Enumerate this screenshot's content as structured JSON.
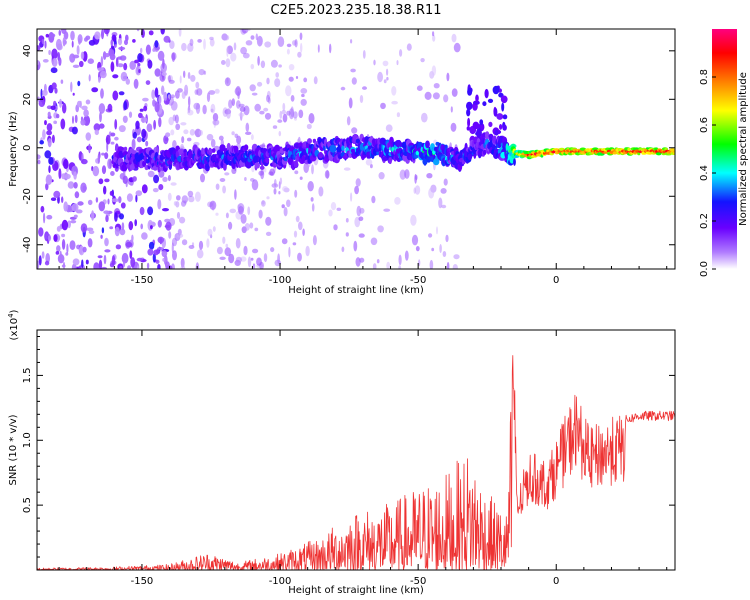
{
  "title": "C2E5.2023.235.18.38.R11",
  "chart_data": [
    {
      "type": "heatmap",
      "xlabel": "Height of straight line (km)",
      "ylabel": "Frequency (Hz)",
      "xlim": [
        -188,
        43
      ],
      "ylim": [
        -50,
        49
      ],
      "xticks": [
        -150,
        -100,
        -50,
        0
      ],
      "yticks": [
        -40,
        -20,
        0,
        20,
        40
      ],
      "colorbar": {
        "label": "Normalized spectral amplitude",
        "range": [
          0,
          1
        ],
        "ticks": [
          "0.0",
          "0.2",
          "0.4",
          "0.6",
          "0.8"
        ],
        "colormap": [
          "#ffffff",
          "#b07cff",
          "#6a00ff",
          "#1414ff",
          "#00ffff",
          "#00ff00",
          "#ffff00",
          "#ff8000",
          "#ff0000",
          "#ff007f"
        ]
      },
      "ridge": [
        {
          "x": -155,
          "y": -4,
          "amp": 0.25
        },
        {
          "x": -140,
          "y": -5,
          "amp": 0.3
        },
        {
          "x": -120,
          "y": -4,
          "amp": 0.3
        },
        {
          "x": -100,
          "y": -4,
          "amp": 0.3
        },
        {
          "x": -85,
          "y": -1,
          "amp": 0.35
        },
        {
          "x": -70,
          "y": 0,
          "amp": 0.35
        },
        {
          "x": -55,
          "y": -1,
          "amp": 0.35
        },
        {
          "x": -43,
          "y": -2,
          "amp": 0.45
        },
        {
          "x": -35,
          "y": -5,
          "amp": 0.3
        },
        {
          "x": -25,
          "y": 2,
          "amp": 0.3
        },
        {
          "x": -17,
          "y": -2,
          "amp": 0.5
        },
        {
          "x": -10,
          "y": -3,
          "amp": 0.95
        },
        {
          "x": 0,
          "y": -1.5,
          "amp": 0.95
        },
        {
          "x": 20,
          "y": -1.5,
          "amp": 0.95
        },
        {
          "x": 43,
          "y": -1.5,
          "amp": 0.95
        }
      ]
    },
    {
      "type": "line",
      "xlabel": "Height of straight line (km)",
      "ylabel": "SNR (10 * v/v)",
      "multiplier": "(x10",
      "multiplier_exp": "4",
      "multiplier_close": ")",
      "xlim": [
        -188,
        43
      ],
      "ylim": [
        0,
        18500
      ],
      "xticks": [
        -150,
        -100,
        -50,
        0
      ],
      "yticks": [
        {
          "value": 5000,
          "label": "0.5"
        },
        {
          "value": 10000,
          "label": "1.0"
        },
        {
          "value": 15000,
          "label": "1.5"
        }
      ],
      "series": [
        {
          "color": "#ee3333",
          "envelope": [
            {
              "x": -188,
              "y": 150
            },
            {
              "x": -160,
              "y": 250
            },
            {
              "x": -140,
              "y": 450
            },
            {
              "x": -126,
              "y": 1400
            },
            {
              "x": -115,
              "y": 600
            },
            {
              "x": -100,
              "y": 1300
            },
            {
              "x": -85,
              "y": 2600
            },
            {
              "x": -75,
              "y": 4500
            },
            {
              "x": -60,
              "y": 5200
            },
            {
              "x": -50,
              "y": 6500
            },
            {
              "x": -40,
              "y": 7500
            },
            {
              "x": -31,
              "y": 9500
            },
            {
              "x": -25,
              "y": 6000
            },
            {
              "x": -18,
              "y": 4500
            },
            {
              "x": -15.5,
              "y": 18500
            },
            {
              "x": -14,
              "y": 6000
            },
            {
              "x": -10,
              "y": 9200
            },
            {
              "x": -3,
              "y": 8500
            },
            {
              "x": 7,
              "y": 14000
            },
            {
              "x": 12,
              "y": 11000
            },
            {
              "x": 20,
              "y": 11800
            },
            {
              "x": 30,
              "y": 12500
            },
            {
              "x": 43,
              "y": 12500
            }
          ]
        }
      ]
    }
  ]
}
